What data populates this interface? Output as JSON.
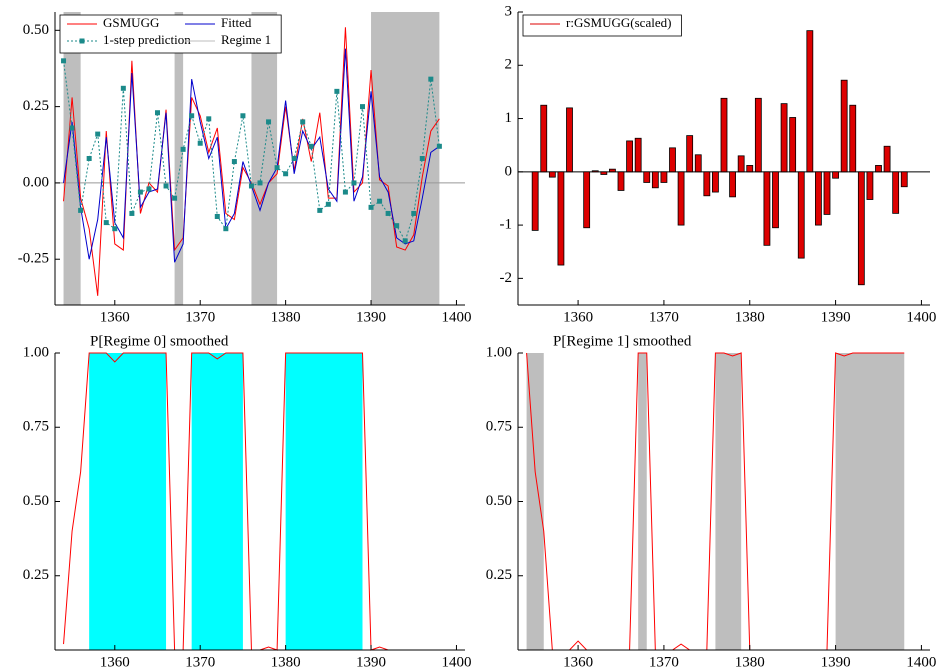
{
  "chart_data": [
    {
      "type": "line",
      "xlim": [
        1353,
        1401
      ],
      "ylim": [
        -0.4,
        0.56
      ],
      "xticks": [
        1360,
        1370,
        1380,
        1390,
        1400
      ],
      "yticks": [
        {
          "value": -0.25,
          "label": "-0.25"
        },
        {
          "value": 0,
          "label": "0.00"
        },
        {
          "value": 0.25,
          "label": "0.25"
        },
        {
          "value": 0.5,
          "label": "0.50"
        }
      ],
      "zero_line": true,
      "legend": "upper left",
      "x": [
        1354,
        1355,
        1356,
        1357,
        1358,
        1359,
        1360,
        1361,
        1362,
        1363,
        1364,
        1365,
        1366,
        1367,
        1368,
        1369,
        1370,
        1371,
        1372,
        1373,
        1374,
        1375,
        1376,
        1377,
        1378,
        1379,
        1380,
        1381,
        1382,
        1383,
        1384,
        1385,
        1386,
        1387,
        1388,
        1389,
        1390,
        1391,
        1392,
        1393,
        1394,
        1395,
        1396,
        1397,
        1398
      ],
      "series": [
        {
          "name": "GSMUGG",
          "color": "#ff0000",
          "values": [
            -0.06,
            0.28,
            -0.05,
            -0.15,
            -0.37,
            0.17,
            -0.2,
            -0.22,
            0.4,
            -0.1,
            0.0,
            -0.03,
            0.24,
            -0.22,
            -0.18,
            0.28,
            0.22,
            0.1,
            0.18,
            -0.1,
            -0.12,
            0.05,
            0.0,
            -0.07,
            0.0,
            0.03,
            0.25,
            0.04,
            0.21,
            0.07,
            0.23,
            -0.05,
            -0.05,
            0.51,
            -0.03,
            0.0,
            0.37,
            0.01,
            -0.01,
            -0.21,
            -0.22,
            -0.17,
            0.02,
            0.17,
            0.21
          ]
        },
        {
          "name": "Fitted",
          "color": "#0000cc",
          "values": [
            0.0,
            0.2,
            -0.08,
            -0.25,
            -0.12,
            0.15,
            -0.13,
            -0.18,
            0.36,
            -0.08,
            -0.03,
            -0.02,
            0.23,
            -0.26,
            -0.2,
            0.34,
            0.2,
            0.08,
            0.15,
            -0.15,
            -0.1,
            0.07,
            -0.01,
            -0.09,
            0.0,
            0.05,
            0.27,
            0.03,
            0.17,
            0.11,
            0.15,
            -0.02,
            -0.06,
            0.44,
            -0.06,
            0.02,
            0.3,
            0.02,
            -0.03,
            -0.18,
            -0.2,
            -0.19,
            -0.05,
            0.1,
            0.12
          ]
        },
        {
          "name": "1-step prediction",
          "color": "#1b8a8a",
          "marker": "square",
          "dash": true,
          "values": [
            0.4,
            0.18,
            -0.09,
            0.08,
            0.16,
            -0.13,
            -0.15,
            0.31,
            -0.1,
            -0.03,
            -0.02,
            0.23,
            -0.01,
            -0.05,
            0.11,
            0.22,
            0.13,
            0.21,
            -0.11,
            -0.15,
            0.07,
            0.22,
            -0.01,
            0.0,
            0.2,
            0.05,
            0.03,
            0.08,
            0.2,
            0.12,
            -0.09,
            -0.07,
            0.3,
            -0.03,
            0.0,
            0.25,
            -0.08,
            -0.06,
            -0.1,
            -0.14,
            -0.19,
            -0.1,
            0.08,
            0.34,
            0.12
          ]
        },
        {
          "name": "Regime 1",
          "color": "#bebebe",
          "spans": [
            [
              1354,
              1356
            ],
            [
              1367,
              1368
            ],
            [
              1376,
              1379
            ],
            [
              1390,
              1398
            ]
          ]
        }
      ]
    },
    {
      "type": "bar",
      "xlim": [
        1353,
        1401
      ],
      "ylim": [
        -2.5,
        3
      ],
      "xticks": [
        1360,
        1370,
        1380,
        1390,
        1400
      ],
      "yticks": [
        -2,
        -1,
        0,
        1,
        2,
        3
      ],
      "zero_line": true,
      "legend": "upper left",
      "x": [
        1355,
        1356,
        1357,
        1358,
        1359,
        1360,
        1361,
        1362,
        1363,
        1364,
        1365,
        1366,
        1367,
        1368,
        1369,
        1370,
        1371,
        1372,
        1373,
        1374,
        1375,
        1376,
        1377,
        1378,
        1379,
        1380,
        1381,
        1382,
        1383,
        1384,
        1385,
        1386,
        1387,
        1388,
        1389,
        1390,
        1391,
        1392,
        1393,
        1394,
        1395,
        1396,
        1397,
        1398
      ],
      "series": [
        {
          "name": "r:GSMUGG(scaled)",
          "color": "#dd0000",
          "values": [
            -1.1,
            1.25,
            -0.1,
            -1.75,
            1.2,
            0.0,
            -1.05,
            0.02,
            -0.05,
            0.05,
            -0.35,
            0.58,
            0.63,
            -0.2,
            -0.3,
            -0.2,
            0.45,
            -1.0,
            0.68,
            0.32,
            -0.45,
            -0.38,
            1.38,
            -0.47,
            0.3,
            0.12,
            1.38,
            -1.38,
            -1.05,
            1.28,
            1.02,
            -1.62,
            2.65,
            -1.0,
            -0.8,
            -0.12,
            1.72,
            1.25,
            -2.12,
            -0.52,
            0.12,
            0.48,
            -0.78,
            -0.28
          ]
        }
      ]
    },
    {
      "type": "line",
      "title": "P[Regime 0] smoothed",
      "xlim": [
        1353,
        1401
      ],
      "ylim": [
        0,
        1
      ],
      "xticks": [
        1360,
        1370,
        1380,
        1390,
        1400
      ],
      "yticks": [
        {
          "value": 0.25,
          "label": "0.25"
        },
        {
          "value": 0.5,
          "label": "0.50"
        },
        {
          "value": 0.75,
          "label": "0.75"
        },
        {
          "value": 1,
          "label": "1.00"
        }
      ],
      "x": [
        1354,
        1355,
        1356,
        1357,
        1358,
        1359,
        1360,
        1361,
        1362,
        1363,
        1364,
        1365,
        1366,
        1367,
        1368,
        1369,
        1370,
        1371,
        1372,
        1373,
        1374,
        1375,
        1376,
        1377,
        1378,
        1379,
        1380,
        1381,
        1382,
        1383,
        1384,
        1385,
        1386,
        1387,
        1388,
        1389,
        1390,
        1391,
        1392,
        1393,
        1394,
        1395,
        1396,
        1397,
        1398
      ],
      "series": [
        {
          "color": "#00ffff",
          "spans": [
            [
              1357,
              1366
            ],
            [
              1369,
              1375
            ],
            [
              1380,
              1389
            ]
          ]
        },
        {
          "color": "#ff0000",
          "values": [
            0.02,
            0.4,
            0.6,
            1,
            1,
            1,
            0.97,
            1,
            1,
            1,
            1,
            1,
            1,
            0,
            0,
            1,
            1,
            1,
            0.98,
            1,
            1,
            1,
            0,
            0,
            0.01,
            0,
            1,
            1,
            1,
            1,
            1,
            1,
            1,
            1,
            1,
            1,
            0,
            0.01,
            0,
            0,
            0,
            0,
            0,
            0,
            0
          ]
        }
      ]
    },
    {
      "type": "line",
      "title": "P[Regime 1] smoothed",
      "xlim": [
        1353,
        1401
      ],
      "ylim": [
        0,
        1
      ],
      "xticks": [
        1360,
        1370,
        1380,
        1390,
        1400
      ],
      "yticks": [
        {
          "value": 0.25,
          "label": "0.25"
        },
        {
          "value": 0.5,
          "label": "0.50"
        },
        {
          "value": 0.75,
          "label": "0.75"
        },
        {
          "value": 1,
          "label": "1.00"
        }
      ],
      "x": [
        1354,
        1355,
        1356,
        1357,
        1358,
        1359,
        1360,
        1361,
        1362,
        1363,
        1364,
        1365,
        1366,
        1367,
        1368,
        1369,
        1370,
        1371,
        1372,
        1373,
        1374,
        1375,
        1376,
        1377,
        1378,
        1379,
        1380,
        1381,
        1382,
        1383,
        1384,
        1385,
        1386,
        1387,
        1388,
        1389,
        1390,
        1391,
        1392,
        1393,
        1394,
        1395,
        1396,
        1397,
        1398
      ],
      "series": [
        {
          "color": "#bebebe",
          "spans": [
            [
              1354,
              1356
            ],
            [
              1367,
              1368
            ],
            [
              1376,
              1379
            ],
            [
              1390,
              1398
            ]
          ]
        },
        {
          "color": "#ff0000",
          "values": [
            1,
            0.6,
            0.4,
            0,
            0,
            0,
            0.03,
            0,
            0,
            0,
            0,
            0,
            0,
            1,
            1,
            0,
            0,
            0,
            0.02,
            0,
            0,
            0,
            1,
            1,
            0.99,
            1,
            0,
            0,
            0,
            0,
            0,
            0,
            0,
            0,
            0,
            0,
            1,
            0.99,
            1,
            1,
            1,
            1,
            1,
            1,
            1
          ]
        }
      ]
    }
  ]
}
